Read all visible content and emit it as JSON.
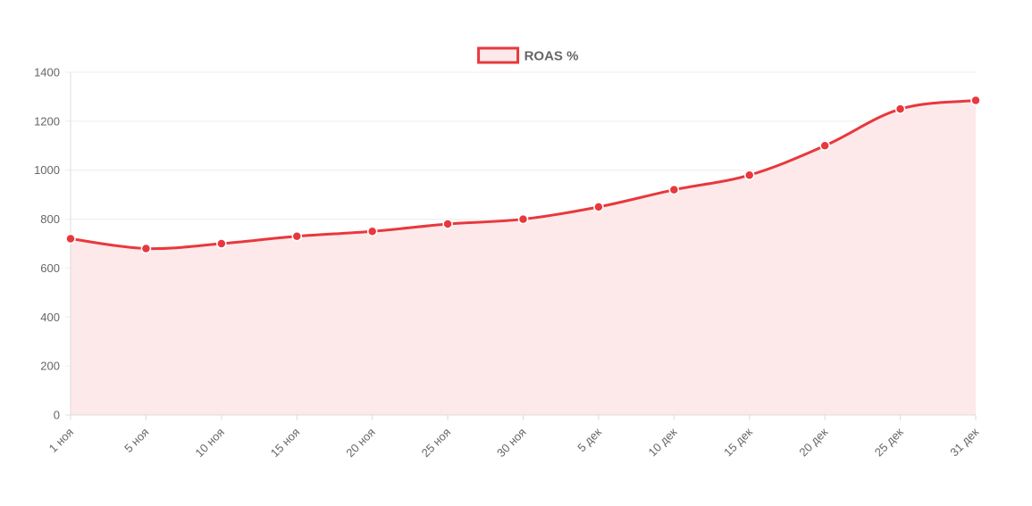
{
  "chart_data": {
    "type": "line",
    "categories": [
      "1 ноя",
      "5 ноя",
      "10 ноя",
      "15 ноя",
      "20 ноя",
      "25 ноя",
      "30 ноя",
      "5 дек",
      "10 дек",
      "15 дек",
      "20 дек",
      "25 дек",
      "31 дек"
    ],
    "series": [
      {
        "name": "ROAS %",
        "values": [
          720,
          680,
          700,
          730,
          750,
          780,
          800,
          850,
          920,
          980,
          1100,
          1250,
          1285
        ],
        "color": "#e8383d",
        "fill": "#fde9ea"
      }
    ],
    "yticks": [
      0,
      200,
      400,
      600,
      800,
      1000,
      1200,
      1400
    ],
    "ylim": [
      0,
      1400
    ],
    "grid": true,
    "legend": "top-center",
    "area_fill": true,
    "smooth": true
  }
}
